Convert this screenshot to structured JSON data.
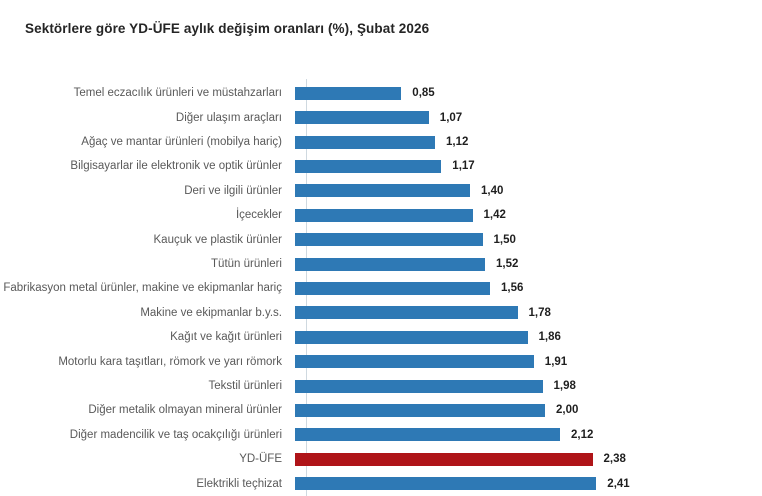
{
  "title": "Sektörlere göre YD-ÜFE aylık değişim oranları (%), Şubat 2026",
  "colors": {
    "bar_default": "#2E79B5",
    "bar_highlight": "#AF1418",
    "axis_line": "#CFD9E0",
    "title_text": "#252525",
    "category_text": "#595959",
    "value_text": "#1F1F1F",
    "background": "#FFFFFF"
  },
  "chart_data": {
    "type": "bar",
    "orientation": "horizontal",
    "title": "Sektörlere göre YD-ÜFE aylık değişim oranları (%), Şubat 2026",
    "xlabel": "",
    "ylabel": "",
    "unit": "%",
    "xlim": [
      0,
      2.6
    ],
    "grid": false,
    "legend": false,
    "value_labels_shown": true,
    "decimal_separator": ",",
    "highlight_category": "YD-ÜFE",
    "highlight_index": 15,
    "categories": [
      "Temel eczacılık ürünleri ve müstahzarları",
      "Diğer ulaşım araçları",
      "Ağaç ve mantar ürünleri (mobilya hariç)",
      "Bilgisayarlar ile elektronik ve optik ürünler",
      "Deri ve ilgili ürünler",
      "İçecekler",
      "Kauçuk ve plastik ürünler",
      "Tütün ürünleri",
      "Fabrikasyon metal ürünler, makine ve ekipmanlar hariç",
      "Makine ve ekipmanlar b.y.s.",
      "Kağıt ve kağıt ürünleri",
      "Motorlu kara taşıtları, römork ve yarı römork",
      "Tekstil ürünleri",
      "Diğer metalik olmayan mineral ürünler",
      "Diğer madencilik ve taş ocakçılığı ürünleri",
      "YD-ÜFE",
      "Elektrikli teçhizat"
    ],
    "values": [
      0.85,
      1.07,
      1.12,
      1.17,
      1.4,
      1.42,
      1.5,
      1.52,
      1.56,
      1.78,
      1.86,
      1.91,
      1.98,
      2.0,
      2.12,
      2.38,
      2.41
    ],
    "value_labels": [
      "0,85",
      "1,07",
      "1,12",
      "1,17",
      "1,40",
      "1,42",
      "1,50",
      "1,52",
      "1,56",
      "1,78",
      "1,86",
      "1,91",
      "1,98",
      "2,00",
      "2,12",
      "2,38",
      "2,41"
    ]
  }
}
